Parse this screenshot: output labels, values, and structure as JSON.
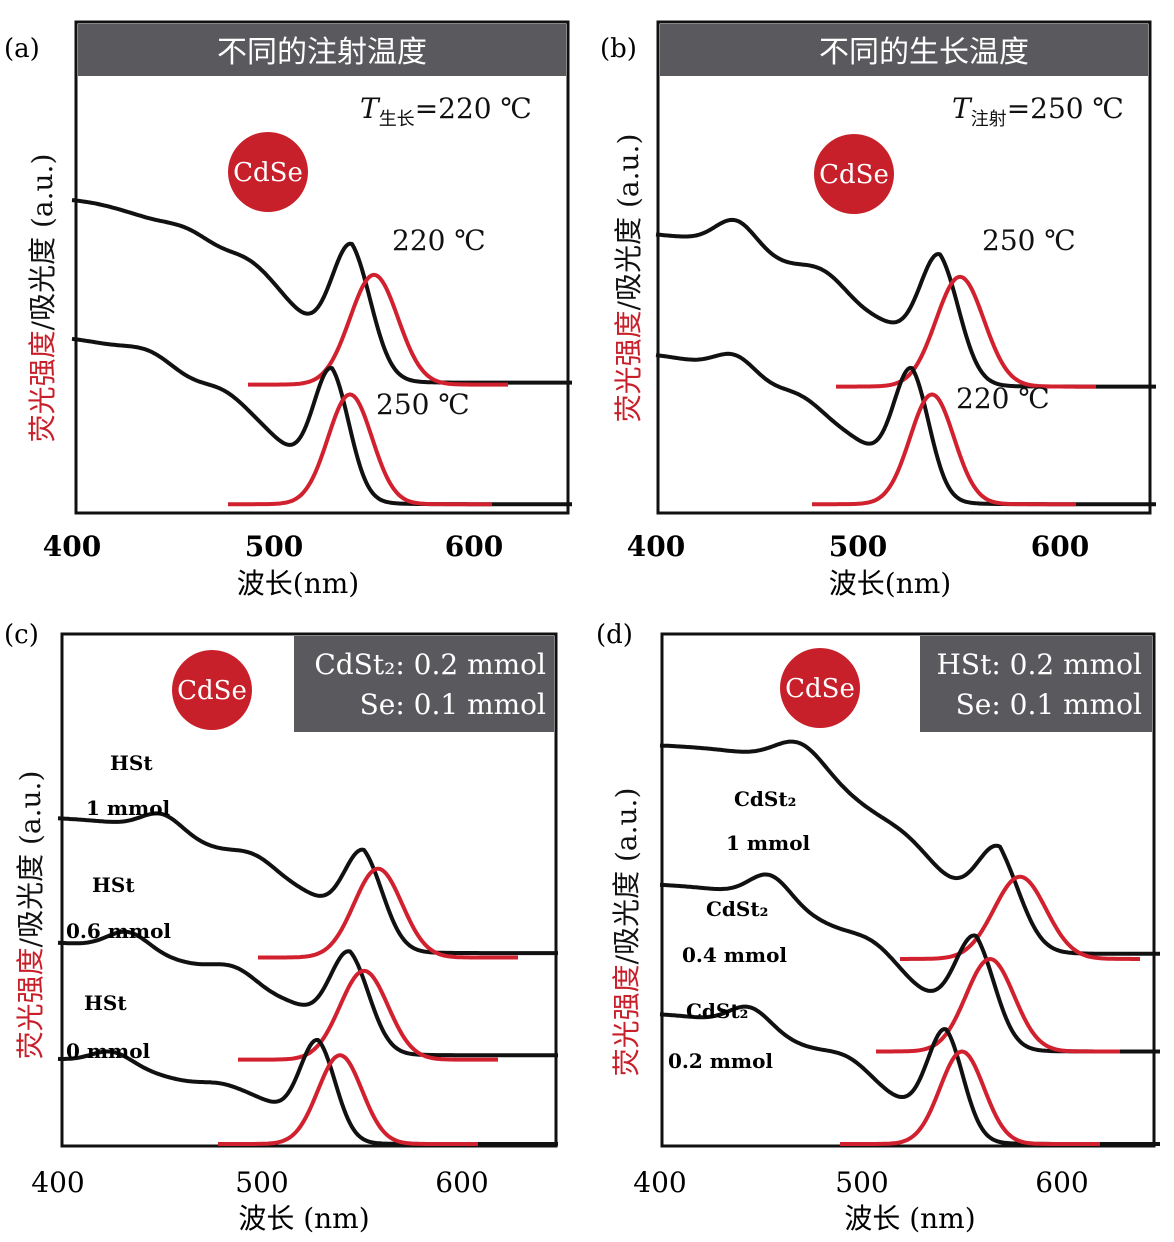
{
  "chart_data": [
    {
      "id": "a",
      "type": "line",
      "panel_label": "(a)",
      "header": "不同的注射温度",
      "condition": {
        "symbol": "T",
        "subscript": "生长",
        "value": "=220 ℃"
      },
      "badge": "CdSe",
      "xlabel": "波长(nm)",
      "ylabel": {
        "red": "荧光强度",
        "black": "/吸光度 (a.u.)"
      },
      "xlim": [
        400,
        650
      ],
      "xticks": [
        "400",
        "500",
        "600"
      ],
      "ylim": [
        0,
        1
      ],
      "series": [
        {
          "label": "220 ℃",
          "abs": {
            "start": 0.77,
            "end": 0.33,
            "peak": 540,
            "peak_height": 0.28,
            "peak_width": 10,
            "features": [
              [
                400,
                0.04,
                40
              ],
              [
                460,
                0.03,
                12
              ],
              [
                490,
                0.06,
                12
              ],
              [
                508,
                0.02,
                10
              ]
            ]
          },
          "pl": {
            "peak": 551,
            "height": 0.28,
            "width": 12,
            "base": 0.325,
            "range": [
              488,
              618
            ]
          }
        },
        {
          "label": "250 ℃",
          "abs": {
            "start": 0.42,
            "end": 0.02,
            "peak": 530,
            "peak_height": 0.28,
            "peak_width": 9,
            "features": [
              [
                400,
                0.04,
                40
              ],
              [
                440,
                0.03,
                12
              ],
              [
                478,
                0.05,
                12
              ],
              [
                498,
                0.02,
                10
              ]
            ]
          },
          "pl": {
            "peak": 539,
            "height": 0.28,
            "width": 11,
            "base": 0.02,
            "range": [
              478,
              610
            ]
          }
        }
      ]
    },
    {
      "id": "b",
      "type": "line",
      "panel_label": "(b)",
      "header": "不同的生长温度",
      "condition": {
        "symbol": "T",
        "subscript": "注射",
        "value": "=250 ℃"
      },
      "badge": "CdSe",
      "xlabel": "波长(nm)",
      "ylabel": {
        "red": "荧光强度",
        "black": "/吸光度 (a.u.)"
      },
      "xlim": [
        400,
        650
      ],
      "xticks": [
        "400",
        "500",
        "600"
      ],
      "ylim": [
        0,
        1
      ],
      "series": [
        {
          "label": "250 ℃",
          "abs": {
            "start": 0.72,
            "end": 0.32,
            "peak": 542,
            "peak_height": 0.27,
            "peak_width": 10,
            "features": [
              [
                440,
                0.07,
                10
              ],
              [
                485,
                0.05,
                12
              ],
              [
                515,
                0.02,
                10
              ]
            ]
          },
          "pl": {
            "peak": 552,
            "height": 0.28,
            "width": 12,
            "base": 0.32,
            "range": [
              490,
              620
            ]
          }
        },
        {
          "label": "220 ℃",
          "abs": {
            "start": 0.42,
            "end": 0.02,
            "peak": 528,
            "peak_height": 0.28,
            "peak_width": 9,
            "features": [
              [
                440,
                0.05,
                10
              ],
              [
                475,
                0.04,
                12
              ],
              [
                500,
                0.02,
                10
              ]
            ]
          },
          "pl": {
            "peak": 538,
            "height": 0.28,
            "width": 11,
            "base": 0.02,
            "range": [
              478,
              610
            ]
          }
        }
      ]
    },
    {
      "id": "c",
      "type": "line",
      "panel_label": "(c)",
      "condition_box": [
        "CdSt₂: 0.2 mmol",
        "Se: 0.1 mmol"
      ],
      "badge": "CdSe",
      "xlabel": "波长 (nm)",
      "ylabel": {
        "red": "荧光强度",
        "black": "/吸光度 (a.u.)"
      },
      "xlim": [
        400,
        650
      ],
      "xticks": [
        "400",
        "500",
        "600"
      ],
      "ylim": [
        0,
        1
      ],
      "series": [
        {
          "label_top": "HSt",
          "label_bottom": "1 mmol",
          "abs": {
            "start": 0.74,
            "end": 0.43,
            "peak": 553,
            "peak_height": 0.18,
            "peak_width": 10,
            "features": [
              [
                452,
                0.04,
                10
              ],
              [
                500,
                0.04,
                12
              ],
              [
                525,
                0.02,
                10
              ]
            ]
          },
          "pl": {
            "peak": 560,
            "height": 0.2,
            "width": 12,
            "base": 0.42,
            "range": [
              500,
              630
            ]
          }
        },
        {
          "label_top": "HSt",
          "label_bottom": "0.6 mmol",
          "abs": {
            "start": 0.46,
            "end": 0.2,
            "peak": 546,
            "peak_height": 0.19,
            "peak_width": 10,
            "features": [
              [
                435,
                0.04,
                10
              ],
              [
                490,
                0.04,
                12
              ],
              [
                518,
                0.02,
                10
              ]
            ]
          },
          "pl": {
            "peak": 553,
            "height": 0.2,
            "width": 12,
            "base": 0.19,
            "range": [
              490,
              620
            ]
          }
        },
        {
          "label_top": "HSt",
          "label_bottom": "0 mmol",
          "abs": {
            "start": 0.2,
            "end": 0.0,
            "peak": 530,
            "peak_height": 0.2,
            "peak_width": 9,
            "features": [
              [
                427,
                0.03,
                10
              ],
              [
                485,
                0.03,
                12
              ],
              [
                505,
                0.02,
                10
              ]
            ]
          },
          "pl": {
            "peak": 541,
            "height": 0.2,
            "width": 11,
            "base": 0.0,
            "range": [
              480,
              610
            ]
          }
        }
      ]
    },
    {
      "id": "d",
      "type": "line",
      "panel_label": "(d)",
      "condition_box": [
        "HSt: 0.2 mmol",
        "Se: 0.1 mmol"
      ],
      "badge": "CdSe",
      "xlabel": "波长 (nm)",
      "ylabel": {
        "red": "荧光强度",
        "black": "/吸光度 (a.u.)"
      },
      "xlim": [
        400,
        650
      ],
      "xticks": [
        "400",
        "500",
        "600"
      ],
      "ylim": [
        0,
        1
      ],
      "series": [
        {
          "label_top": "CdSt₂",
          "label_bottom": "1 mmol",
          "abs": {
            "start": 0.78,
            "end": 0.37,
            "peak": 570,
            "peak_height": 0.14,
            "peak_width": 11,
            "features": [
              [
                470,
                0.05,
                12
              ],
              [
                525,
                0.02,
                12
              ]
            ]
          },
          "pl": {
            "peak": 580,
            "height": 0.16,
            "width": 13,
            "base": 0.36,
            "range": [
              520,
              640
            ]
          }
        },
        {
          "label_top": "CdSt₂",
          "label_bottom": "0.4 mmol",
          "abs": {
            "start": 0.51,
            "end": 0.18,
            "peak": 558,
            "peak_height": 0.17,
            "peak_width": 10,
            "features": [
              [
                455,
                0.05,
                10
              ],
              [
                508,
                0.03,
                12
              ]
            ]
          },
          "pl": {
            "peak": 565,
            "height": 0.18,
            "width": 12,
            "base": 0.18,
            "range": [
              508,
              630
            ]
          }
        },
        {
          "label_top": "CdSt₂",
          "label_bottom": "0.2 mmol",
          "abs": {
            "start": 0.26,
            "end": 0.0,
            "peak": 543,
            "peak_height": 0.18,
            "peak_width": 9,
            "features": [
              [
                445,
                0.04,
                10
              ],
              [
                495,
                0.03,
                12
              ]
            ]
          },
          "pl": {
            "peak": 551,
            "height": 0.18,
            "width": 11,
            "base": 0.0,
            "range": [
              490,
              620
            ]
          }
        }
      ]
    }
  ]
}
